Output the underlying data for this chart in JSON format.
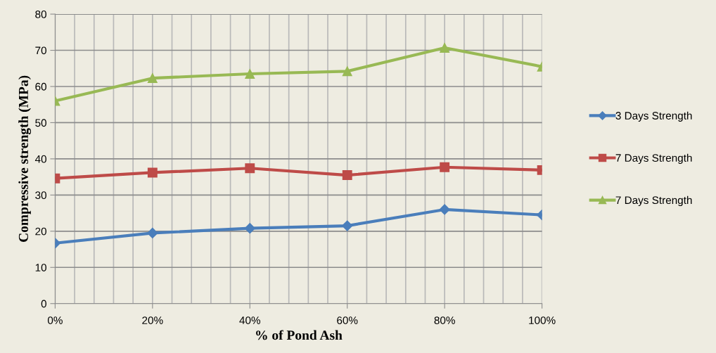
{
  "chart_data": {
    "type": "line",
    "xlabel": "% of Pond Ash",
    "ylabel": "Compressive strength (MPa)",
    "categories": [
      "0%",
      "20%",
      "40%",
      "60%",
      "80%",
      "100%"
    ],
    "series": [
      {
        "name": "3 Days Strength",
        "color": "#4a7ebb",
        "marker": "diamond",
        "values": [
          16.7,
          19.5,
          20.8,
          21.5,
          26.0,
          24.5
        ]
      },
      {
        "name": "7 Days Strength",
        "color": "#be4b48",
        "marker": "square",
        "values": [
          34.6,
          36.2,
          37.4,
          35.5,
          37.7,
          36.9
        ]
      },
      {
        "name": "7 Days Strength",
        "color": "#98b954",
        "marker": "triangle",
        "values": [
          56.0,
          62.3,
          63.5,
          64.2,
          70.7,
          65.5
        ]
      }
    ],
    "ylim": [
      0,
      80
    ],
    "yticks": [
      0,
      10,
      20,
      30,
      40,
      50,
      60,
      70,
      80
    ],
    "grid": true,
    "legend": "right",
    "line_style": "solid"
  }
}
